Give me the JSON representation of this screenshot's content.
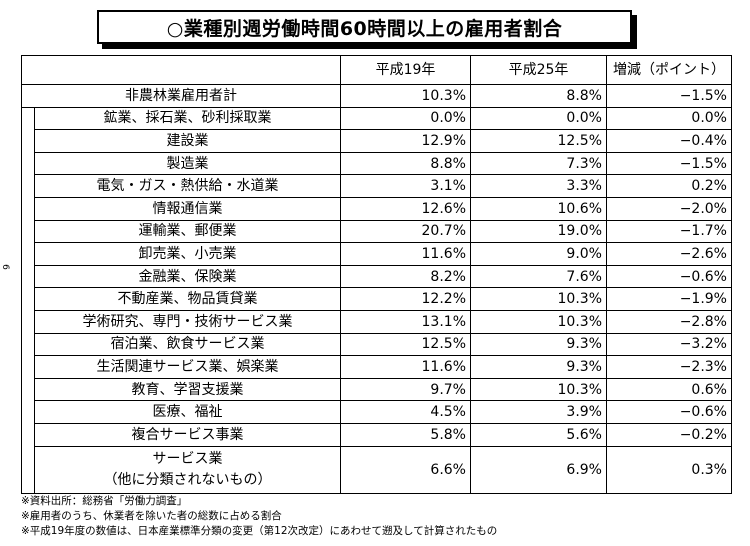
{
  "title": "○業種別週労働時間60時間以上の雇用者割合",
  "side_page_number": "6",
  "table": {
    "headers": [
      "平成19年",
      "平成25年",
      "増減（ポイント）"
    ],
    "total_row": {
      "industry": "非農林業雇用者計",
      "h19": "10.3%",
      "h25": "8.8%",
      "change": "−1.5%"
    },
    "rows": [
      {
        "industry": "鉱業、採石業、砂利採取業",
        "h19": "0.0%",
        "h25": "0.0%",
        "change": "0.0%"
      },
      {
        "industry": "建設業",
        "h19": "12.9%",
        "h25": "12.5%",
        "change": "−0.4%"
      },
      {
        "industry": "製造業",
        "h19": "8.8%",
        "h25": "7.3%",
        "change": "−1.5%"
      },
      {
        "industry": "電気・ガス・熱供給・水道業",
        "h19": "3.1%",
        "h25": "3.3%",
        "change": "0.2%"
      },
      {
        "industry": "情報通信業",
        "h19": "12.6%",
        "h25": "10.6%",
        "change": "−2.0%"
      },
      {
        "industry": "運輸業、郵便業",
        "h19": "20.7%",
        "h25": "19.0%",
        "change": "−1.7%"
      },
      {
        "industry": "卸売業、小売業",
        "h19": "11.6%",
        "h25": "9.0%",
        "change": "−2.6%"
      },
      {
        "industry": "金融業、保険業",
        "h19": "8.2%",
        "h25": "7.6%",
        "change": "−0.6%"
      },
      {
        "industry": "不動産業、物品賃貸業",
        "h19": "12.2%",
        "h25": "10.3%",
        "change": "−1.9%"
      },
      {
        "industry": "学術研究、専門・技術サービス業",
        "h19": "13.1%",
        "h25": "10.3%",
        "change": "−2.8%"
      },
      {
        "industry": "宿泊業、飲食サービス業",
        "h19": "12.5%",
        "h25": "9.3%",
        "change": "−3.2%"
      },
      {
        "industry": "生活関連サービス業、娯楽業",
        "h19": "11.6%",
        "h25": "9.3%",
        "change": "−2.3%"
      },
      {
        "industry": "教育、学習支援業",
        "h19": "9.7%",
        "h25": "10.3%",
        "change": "0.6%"
      },
      {
        "industry": "医療、福祉",
        "h19": "4.5%",
        "h25": "3.9%",
        "change": "−0.6%"
      },
      {
        "industry": "複合サービス事業",
        "h19": "5.8%",
        "h25": "5.6%",
        "change": "−0.2%"
      },
      {
        "industry_line1": "サービス業",
        "industry_line2": "（他に分類されないもの）",
        "h19": "6.6%",
        "h25": "6.9%",
        "change": "0.3%"
      }
    ]
  },
  "notes": [
    "※資料出所：総務省「労働力調査」",
    "※雇用者のうち、休業者を除いた者の総数に占める割合",
    "※平成19年度の数値は、日本産業標準分類の変更（第12次改定）にあわせて遡及して計算されたもの"
  ]
}
